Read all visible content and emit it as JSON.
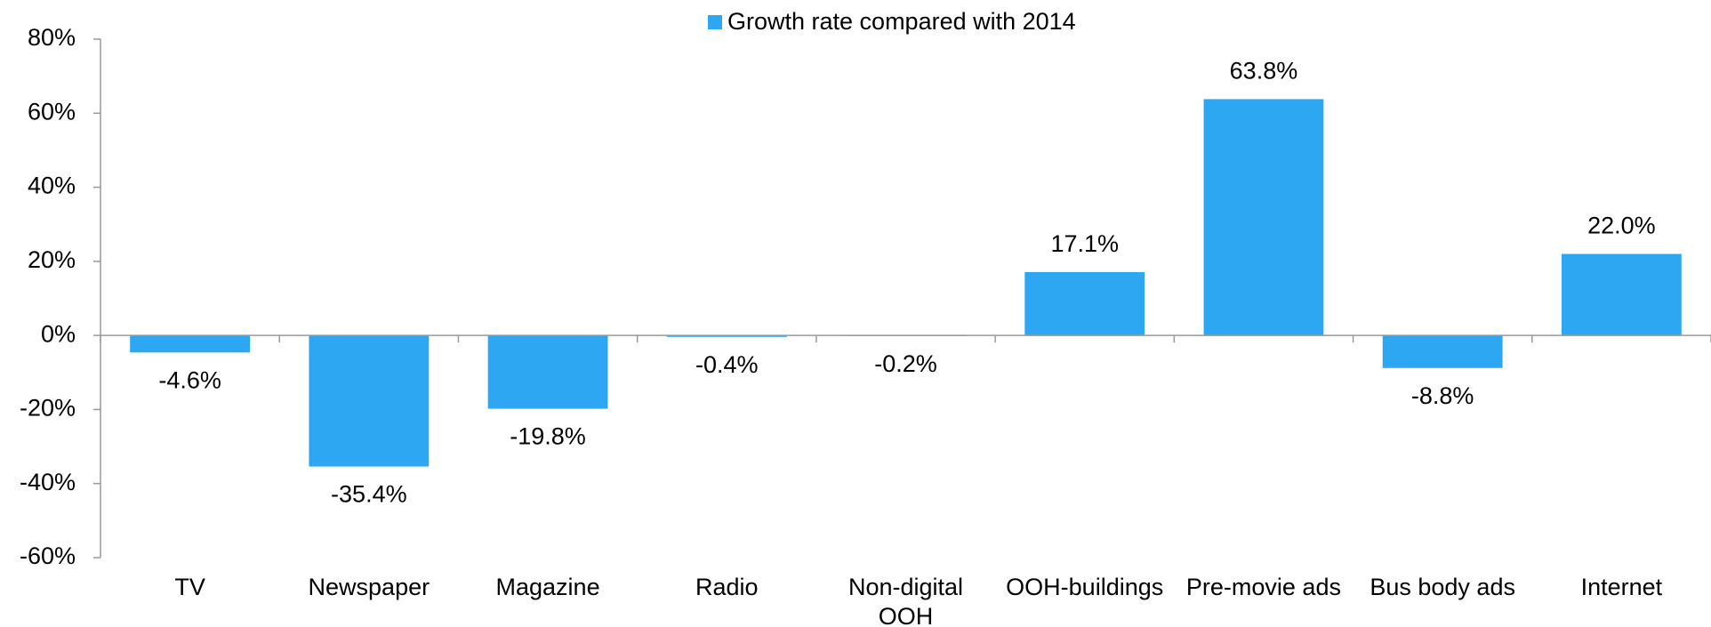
{
  "chart_data": {
    "type": "bar",
    "categories": [
      "TV",
      "Newspaper",
      "Magazine",
      "Radio",
      "Non-digital OOH",
      "OOH-buildings",
      "Pre-movie ads",
      "Bus body ads",
      "Internet"
    ],
    "series": [
      {
        "name": "Growth rate compared with 2014",
        "color": "#2ea7f2",
        "values": [
          -4.6,
          -35.4,
          -19.8,
          -0.4,
          -0.2,
          17.1,
          63.8,
          -8.8,
          22.0
        ],
        "value_labels": [
          "-4.6%",
          "-35.4%",
          "-19.8%",
          "-0.4%",
          "-0.2%",
          "17.1%",
          "63.8%",
          "-8.8%",
          "22.0%"
        ]
      }
    ],
    "ylim": [
      -60,
      80
    ],
    "yticks": [
      {
        "value": -60,
        "label": "-60%"
      },
      {
        "value": -40,
        "label": "-40%"
      },
      {
        "value": -20,
        "label": "-20%"
      },
      {
        "value": 0,
        "label": "0%"
      },
      {
        "value": 20,
        "label": "20%"
      },
      {
        "value": 40,
        "label": "40%"
      },
      {
        "value": 60,
        "label": "60%"
      },
      {
        "value": 80,
        "label": "80%"
      }
    ],
    "legend": "top"
  }
}
